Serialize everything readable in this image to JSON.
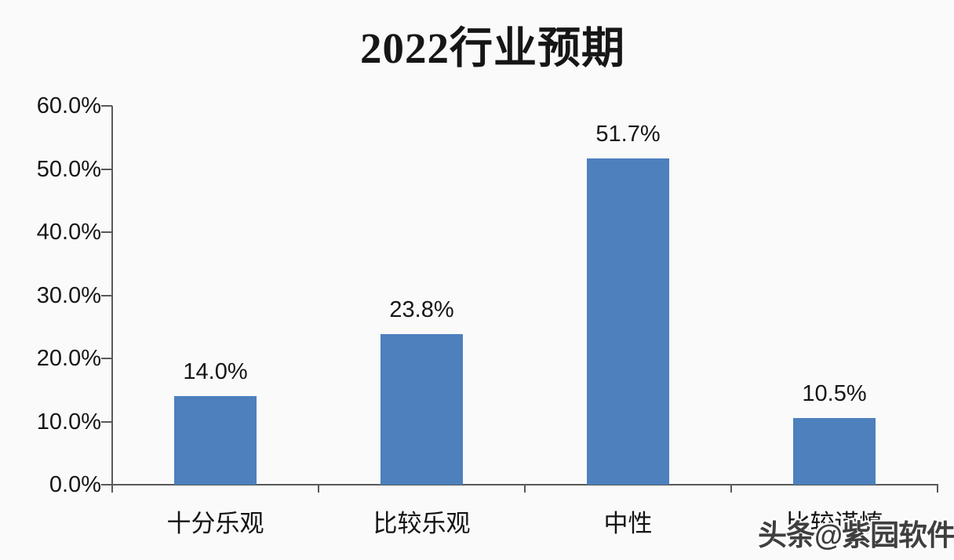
{
  "page": {
    "background": "#fafafa"
  },
  "title": {
    "text": "2022行业预期"
  },
  "watermark": {
    "text": "头条@紫园软件"
  },
  "colors": {
    "bar": "#4d80bd",
    "axis": "#595959",
    "text": "#161616",
    "background": "#fafafa"
  },
  "chart_data": {
    "type": "bar",
    "title": "2022行业预期",
    "categories": [
      "十分乐观",
      "比较乐观",
      "中性",
      "比较谨慎"
    ],
    "values": [
      14.0,
      23.8,
      51.7,
      10.5
    ],
    "data_labels": [
      "14.0%",
      "23.8%",
      "51.7%",
      "10.5%"
    ],
    "xlabel": "",
    "ylabel": "",
    "ylim": [
      0,
      60
    ],
    "ytick_values": [
      0,
      10,
      20,
      30,
      40,
      50,
      60
    ],
    "ytick_labels": [
      "0.0%",
      "10.0%",
      "20.0%",
      "30.0%",
      "40.0%",
      "50.0%",
      "60.0%"
    ],
    "grid": false,
    "legend": false,
    "data_label_position": "above-bar",
    "bar_color": "#4d80bd",
    "axis_color": "#595959"
  }
}
